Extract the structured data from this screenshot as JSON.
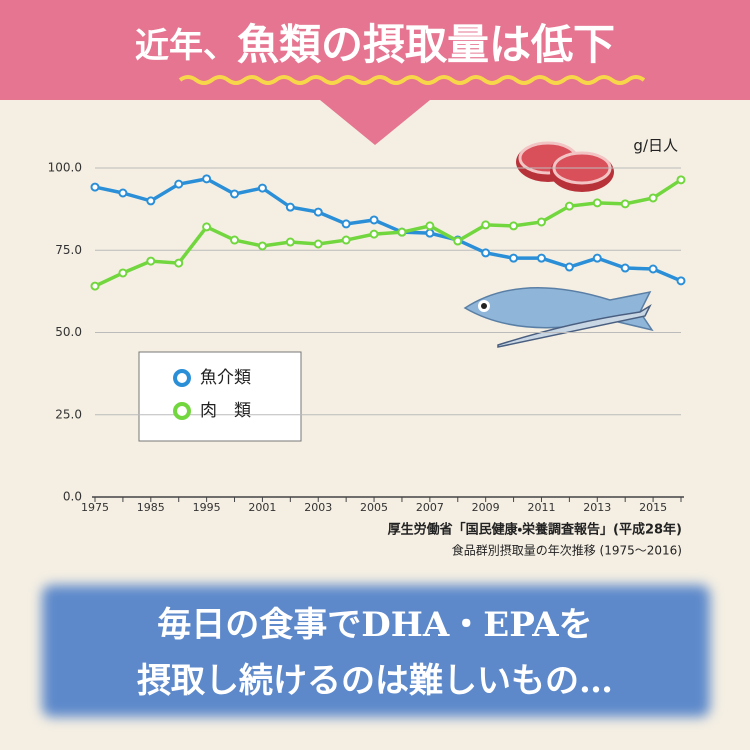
{
  "header": {
    "title_prefix": "近年、",
    "title": "魚類の摂取量は低下"
  },
  "chart_data": {
    "type": "line",
    "unit": "g/日人",
    "categories": [
      "1975",
      null,
      "1985",
      null,
      "1995",
      null,
      "2001",
      null,
      "2003",
      null,
      "2005",
      null,
      "2007",
      null,
      "2009",
      null,
      "2011",
      null,
      "2013",
      null,
      "2015",
      null
    ],
    "series": [
      {
        "name": "魚介類",
        "color": "#2b8fd8",
        "values": [
          94.2,
          92.4,
          90.0,
          95.1,
          96.7,
          92.1,
          93.9,
          88.1,
          86.6,
          83.0,
          84.2,
          80.5,
          80.2,
          78.1,
          74.2,
          72.6,
          72.6,
          69.9,
          72.6,
          69.6,
          69.3,
          65.7
        ]
      },
      {
        "name": "肉　類",
        "color": "#72d63e",
        "values": [
          64.1,
          68.1,
          71.7,
          71.1,
          82.1,
          78.1,
          76.3,
          77.5,
          76.9,
          78.1,
          79.9,
          80.5,
          82.4,
          77.8,
          82.7,
          82.4,
          83.6,
          88.4,
          89.4,
          89.1,
          90.9,
          96.4
        ]
      }
    ],
    "ylim": [
      0,
      100
    ],
    "yticks": [
      {
        "value": 0,
        "label": "0.0"
      },
      {
        "value": 25,
        "label": "25.0"
      },
      {
        "value": 50,
        "label": "50.0"
      },
      {
        "value": 75,
        "label": "75.0"
      },
      {
        "value": 100,
        "label": "100.0"
      }
    ],
    "grid": true,
    "source": "厚生労働省「国民健康・栄養調査報告」(平成28年)",
    "subtitle": "食品群別摂取量の年次推移 (1975～2016)"
  },
  "footer": {
    "lines": [
      "毎日の食事でDHA・EPAを",
      "摂取し続けるのは難しいもの…"
    ]
  }
}
